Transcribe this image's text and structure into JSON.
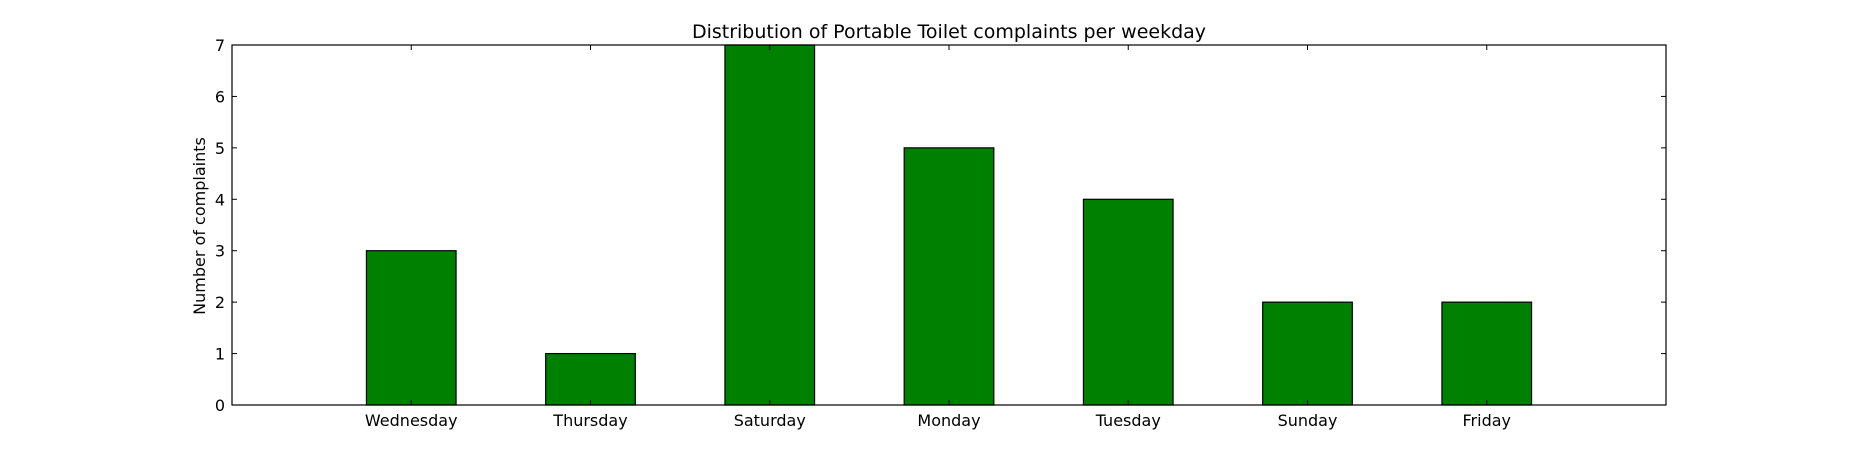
{
  "chart_data": {
    "type": "bar",
    "title": "Distribution of  Portable Toilet complaints per weekday",
    "xlabel": "",
    "ylabel": "Number of complaints",
    "categories": [
      "Wednesday",
      "Thursday",
      "Saturday",
      "Monday",
      "Tuesday",
      "Sunday",
      "Friday"
    ],
    "values": [
      3,
      1,
      7,
      5,
      4,
      2,
      2
    ],
    "ylim": [
      0,
      7
    ],
    "yticks": [
      0,
      1,
      2,
      3,
      4,
      5,
      6,
      7
    ],
    "xlim": [
      -1,
      7
    ],
    "grid": false,
    "bar_color": "#008000",
    "edge_color": "#000000"
  }
}
